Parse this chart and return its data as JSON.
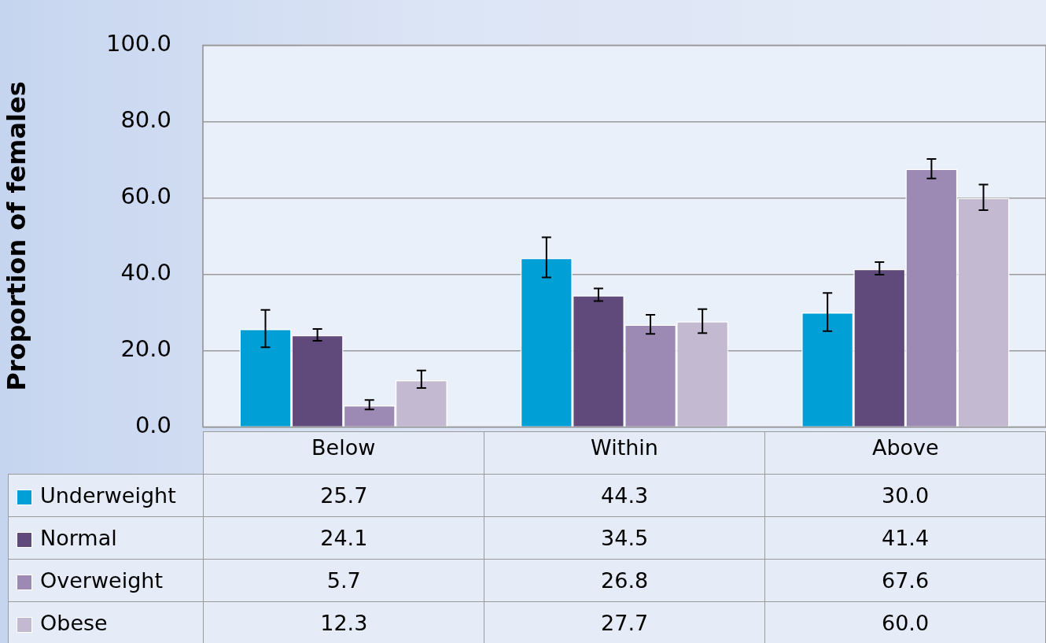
{
  "chart_data": {
    "type": "bar",
    "ylabel": "Proportion of females",
    "categories": [
      "Below",
      "Within",
      "Above"
    ],
    "series": [
      {
        "name": "Underweight",
        "color": "#00a0d6",
        "values": [
          25.7,
          44.3,
          30.0
        ],
        "value_labels": [
          "25.7",
          "44.3",
          "30.0"
        ],
        "errors": [
          [
            20.9,
            30.7
          ],
          [
            39.2,
            49.7
          ],
          [
            25.1,
            35.1
          ]
        ]
      },
      {
        "name": "Normal",
        "color": "#604a7b",
        "values": [
          24.1,
          34.5,
          41.4
        ],
        "errors": [
          [
            22.6,
            25.7
          ],
          [
            33.0,
            36.3
          ],
          [
            39.9,
            43.2
          ]
        ]
      },
      {
        "name": "Overweight",
        "color": "#9c8ab4",
        "values": [
          5.7,
          26.8,
          67.6
        ],
        "errors": [
          [
            4.6,
            7.1
          ],
          [
            24.4,
            29.4
          ],
          [
            65.1,
            70.2
          ]
        ]
      },
      {
        "name": "Obese",
        "color": "#c3b9d0",
        "values": [
          12.3,
          27.7,
          60.0
        ],
        "value_labels": [
          "12.3",
          "27.7",
          "60.0"
        ],
        "errors": [
          [
            10.2,
            14.8
          ],
          [
            24.6,
            30.9
          ],
          [
            56.8,
            63.5
          ]
        ]
      }
    ],
    "ylim": [
      0,
      100
    ],
    "yticks": [
      {
        "value": 0,
        "label": "0.0"
      },
      {
        "value": 20,
        "label": "20.0"
      },
      {
        "value": 40,
        "label": "40.0"
      },
      {
        "value": 60,
        "label": "60.0"
      },
      {
        "value": 80,
        "label": "80.0"
      },
      {
        "value": 100,
        "label": "100.0"
      }
    ],
    "grid": "y",
    "legend": "bottom left",
    "data_labels": true
  }
}
